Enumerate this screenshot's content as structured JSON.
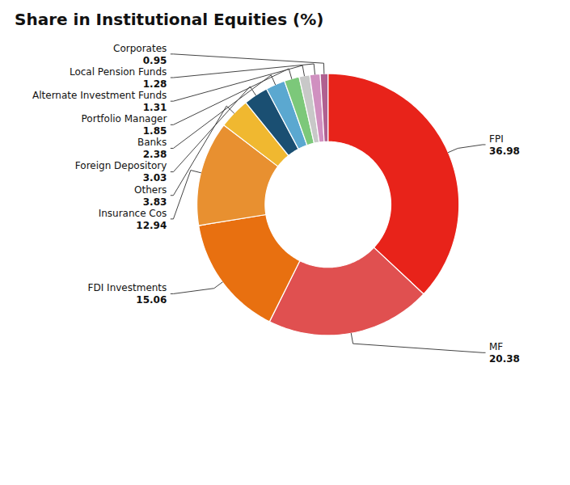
{
  "chart_data": {
    "type": "donut",
    "title": "Share in Institutional Equities (%)",
    "categories": [
      "FPI",
      "MF",
      "FDI Investments",
      "Insurance Cos",
      "Others",
      "Foreign Depository",
      "Banks",
      "Portfolio Manager",
      "Alternate Investment Funds",
      "Local Pension Funds",
      "Corporates"
    ],
    "values": [
      36.98,
      20.38,
      15.06,
      12.94,
      3.83,
      3.03,
      2.38,
      1.85,
      1.31,
      1.28,
      0.95
    ],
    "colors": [
      "#e8231a",
      "#e05050",
      "#e87010",
      "#e89030",
      "#f0b830",
      "#1a4f72",
      "#5ba8d0",
      "#7cc87a",
      "#c8c8c8",
      "#d090c0",
      "#b06090"
    ],
    "data_labels": true
  }
}
